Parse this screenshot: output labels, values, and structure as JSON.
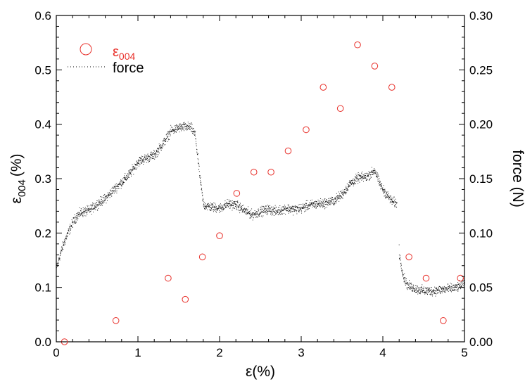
{
  "chart_data": {
    "type": "scatter",
    "xlabel": "ε(%)",
    "ylabel_left": {
      "main": "ε",
      "sub": "004",
      "unit": "(%)"
    },
    "ylabel_right": "force (N)",
    "xlim": [
      0,
      5
    ],
    "ylim_left": [
      0,
      0.6
    ],
    "ylim_right": [
      0,
      0.3
    ],
    "x_ticks": [
      "0",
      "1",
      "2",
      "3",
      "4",
      "5"
    ],
    "y_left_ticks": [
      "0.0",
      "0.1",
      "0.2",
      "0.3",
      "0.4",
      "0.5",
      "0.6"
    ],
    "y_right_ticks": [
      "0.00",
      "0.05",
      "0.10",
      "0.15",
      "0.20",
      "0.25",
      "0.30"
    ],
    "legend": {
      "position": "top-left",
      "entries": [
        {
          "main": "ε",
          "sub": "004",
          "color": "#e8302a",
          "marker": "open-circle"
        },
        {
          "main": "force",
          "sub": "",
          "color": "#000000",
          "marker": "dotted-line"
        }
      ]
    },
    "series": [
      {
        "name": "ε004",
        "axis": "left",
        "color": "#e8302a",
        "x": [
          0.1,
          0.73,
          1.37,
          1.58,
          1.79,
          2.0,
          2.21,
          2.42,
          2.63,
          2.84,
          3.06,
          3.27,
          3.48,
          3.69,
          3.9,
          4.11,
          4.32,
          4.53,
          4.74,
          4.95
        ],
        "y": [
          0.0,
          0.039,
          0.117,
          0.078,
          0.156,
          0.195,
          0.273,
          0.312,
          0.312,
          0.351,
          0.39,
          0.468,
          0.429,
          0.546,
          0.507,
          0.468,
          0.156,
          0.117,
          0.039,
          0.117
        ]
      },
      {
        "name": "force",
        "axis": "right",
        "color": "#000000",
        "x": [
          0.0,
          0.05,
          0.1,
          0.15,
          0.2,
          0.25,
          0.3,
          0.35,
          0.4,
          0.5,
          0.6,
          0.7,
          0.8,
          0.9,
          1.0,
          1.1,
          1.2,
          1.3,
          1.4,
          1.5,
          1.6,
          1.65,
          1.7,
          1.75,
          1.8,
          1.9,
          2.0,
          2.1,
          2.2,
          2.3,
          2.4,
          2.5,
          2.6,
          2.7,
          2.8,
          2.9,
          3.0,
          3.1,
          3.2,
          3.3,
          3.4,
          3.5,
          3.6,
          3.7,
          3.8,
          3.9,
          3.95,
          4.0,
          4.1,
          4.17,
          4.2,
          4.25,
          4.3,
          4.4,
          4.5,
          4.6,
          4.7,
          4.8,
          4.9,
          5.0
        ],
        "y": [
          0.068,
          0.082,
          0.093,
          0.102,
          0.11,
          0.116,
          0.119,
          0.12,
          0.121,
          0.127,
          0.132,
          0.14,
          0.147,
          0.155,
          0.166,
          0.169,
          0.172,
          0.182,
          0.194,
          0.197,
          0.198,
          0.197,
          0.19,
          0.155,
          0.126,
          0.124,
          0.123,
          0.127,
          0.126,
          0.121,
          0.117,
          0.12,
          0.122,
          0.12,
          0.123,
          0.122,
          0.123,
          0.126,
          0.127,
          0.128,
          0.13,
          0.136,
          0.146,
          0.151,
          0.152,
          0.158,
          0.147,
          0.14,
          0.13,
          0.127,
          0.08,
          0.06,
          0.052,
          0.049,
          0.047,
          0.047,
          0.048,
          0.049,
          0.05,
          0.054
        ]
      }
    ]
  }
}
